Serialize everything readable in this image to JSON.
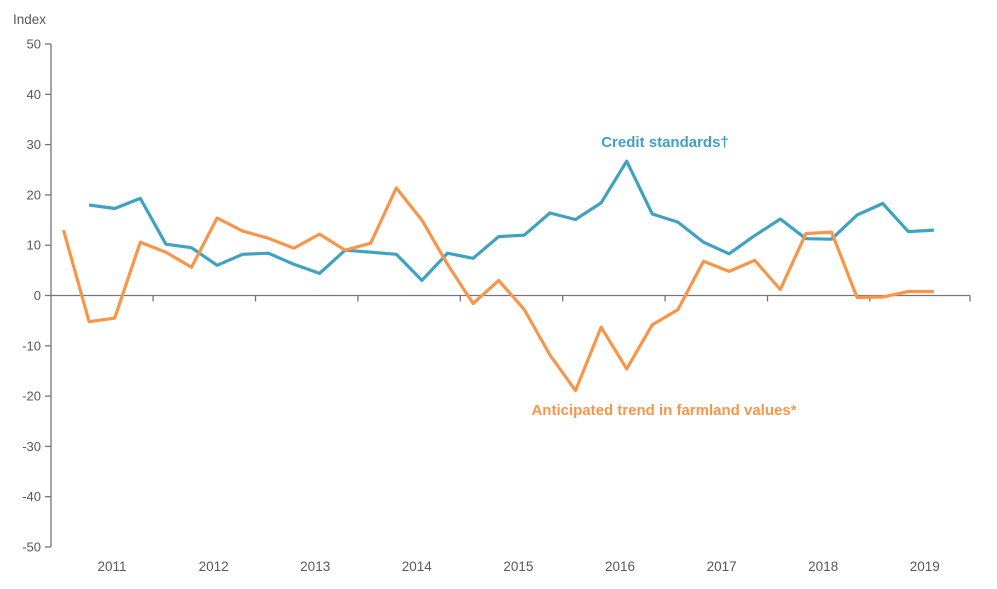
{
  "chart": {
    "ylabel": "Index"
  },
  "chart_data": {
    "type": "line",
    "title": "",
    "ylabel": "Index",
    "xlabel": "",
    "ylim": [
      -50,
      50
    ],
    "yticks": [
      50,
      40,
      30,
      20,
      10,
      0,
      -10,
      -20,
      -30,
      -40,
      -50
    ],
    "xticks": [
      "2011",
      "2012",
      "2013",
      "2014",
      "2015",
      "2016",
      "2017",
      "2018",
      "2019"
    ],
    "x_frequency": "quarterly",
    "grid": false,
    "legend": "inline-annotations",
    "axis_color": "#757575",
    "tick_text_color": "#595959",
    "series": [
      {
        "name": "Credit standards†",
        "color": "#3FA2C2",
        "start_quarter": "2011Q2",
        "start_index": 1,
        "values": [
          18,
          17.3,
          19.3,
          10.2,
          9.5,
          6,
          8.2,
          8.4,
          6.2,
          4.4,
          9,
          8.6,
          8.2,
          3,
          8.4,
          7.4,
          11.7,
          12,
          16.4,
          15.1,
          18.4,
          26.7,
          16.2,
          14.6,
          10.6,
          8.3,
          11.9,
          15.2,
          11.3,
          11.2,
          16,
          18.3,
          12.7,
          13
        ]
      },
      {
        "name": "Anticipated trend in farmland values*",
        "color": "#F7964B",
        "start_quarter": "2011Q1",
        "start_index": 0,
        "values": [
          13,
          -5.2,
          -4.5,
          10.6,
          8.6,
          5.6,
          15.4,
          12.8,
          11.4,
          9.4,
          12.2,
          9,
          10.4,
          21.4,
          15,
          6.2,
          -1.6,
          3,
          -2.8,
          -11.8,
          -18.9,
          -6.3,
          -14.6,
          -5.8,
          -2.8,
          6.8,
          4.8,
          7,
          1.2,
          12.3,
          12.6,
          -0.4,
          -0.3,
          0.8,
          0.8
        ]
      }
    ]
  }
}
